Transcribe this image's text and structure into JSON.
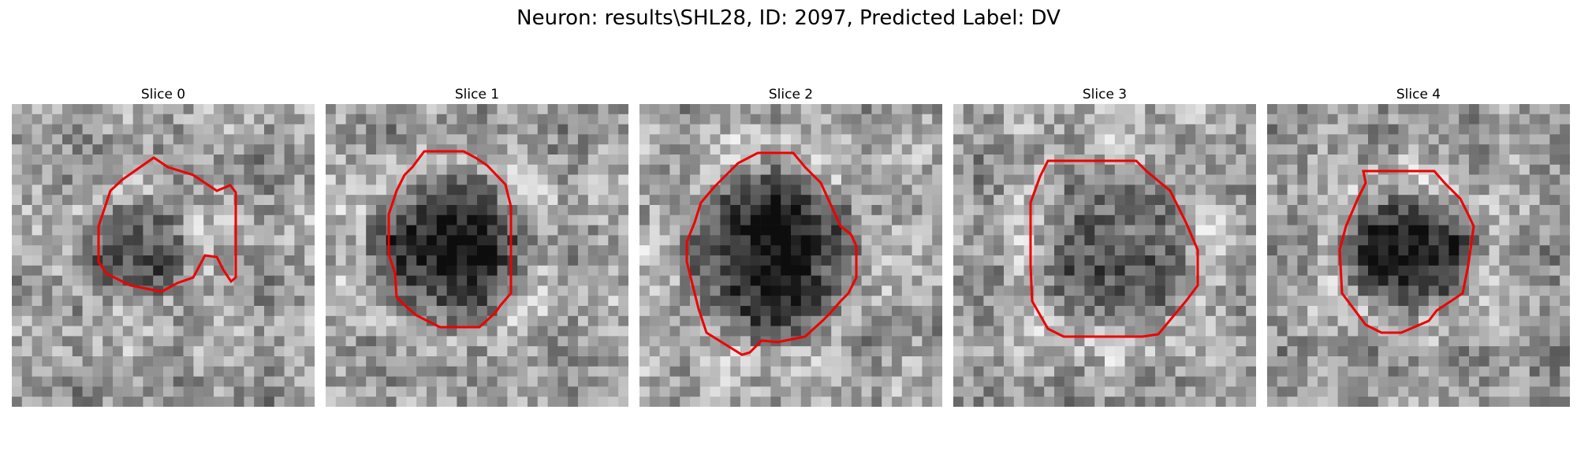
{
  "figure": {
    "title": "Neuron: results\\SHL28, ID: 2097, Predicted Label: DV"
  },
  "panels": [
    {
      "title": "Slice 0"
    },
    {
      "title": "Slice 1"
    },
    {
      "title": "Slice 2"
    },
    {
      "title": "Slice 3"
    },
    {
      "title": "Slice 4"
    }
  ],
  "colors": {
    "contour": "#ee0000",
    "image_colormap": "gray"
  }
}
